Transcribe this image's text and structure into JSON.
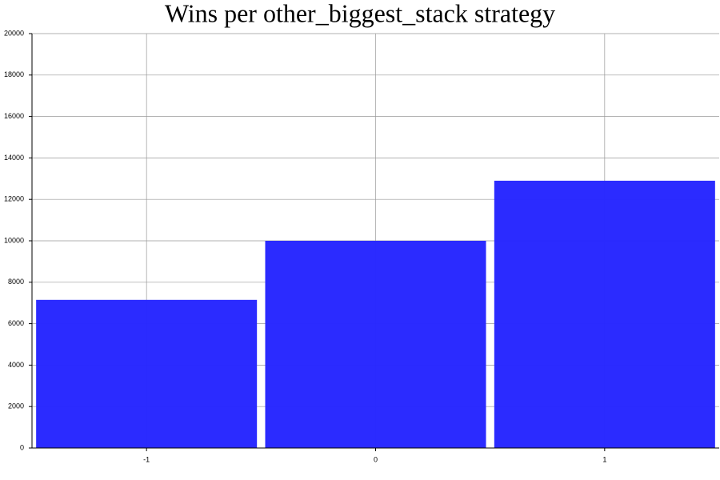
{
  "chart_data": {
    "type": "bar",
    "title": "Wins per other_biggest_stack strategy",
    "x": [
      -1,
      0,
      1
    ],
    "values": [
      7150,
      10000,
      12900
    ],
    "color": "#2727ff",
    "xlim": [
      -1.5,
      1.5
    ],
    "xticks": [
      -1,
      0,
      1
    ],
    "ylim": [
      0,
      20000
    ],
    "yticks": [
      0,
      2000,
      4000,
      6000,
      8000,
      10000,
      12000,
      14000,
      16000,
      18000,
      20000
    ],
    "grid": true
  }
}
